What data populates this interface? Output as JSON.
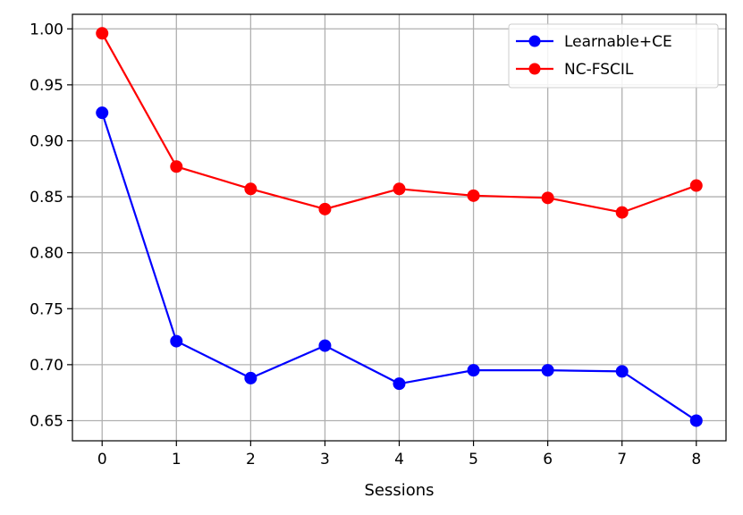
{
  "chart_data": {
    "type": "line",
    "title": "",
    "xlabel": "Sessions",
    "ylabel": "",
    "x": [
      0,
      1,
      2,
      3,
      4,
      5,
      6,
      7,
      8
    ],
    "xlim": [
      -0.4,
      8.4
    ],
    "ylim": [
      0.632,
      1.013
    ],
    "xticks": [
      0,
      1,
      2,
      3,
      4,
      5,
      6,
      7,
      8
    ],
    "yticks": [
      0.65,
      0.7,
      0.75,
      0.8,
      0.85,
      0.9,
      0.95,
      1.0
    ],
    "ytick_labels": [
      "0.65",
      "0.70",
      "0.75",
      "0.80",
      "0.85",
      "0.90",
      "0.95",
      "1.00"
    ],
    "grid": true,
    "legend_position": "top-right",
    "series": [
      {
        "name": "Learnable+CE",
        "color": "#0000ff",
        "marker": "circle",
        "values": [
          0.925,
          0.721,
          0.688,
          0.717,
          0.683,
          0.695,
          0.695,
          0.694,
          0.65
        ]
      },
      {
        "name": "NC-FSCIL",
        "color": "#ff0000",
        "marker": "circle",
        "values": [
          0.996,
          0.877,
          0.857,
          0.839,
          0.857,
          0.851,
          0.849,
          0.836,
          0.86
        ]
      }
    ]
  }
}
